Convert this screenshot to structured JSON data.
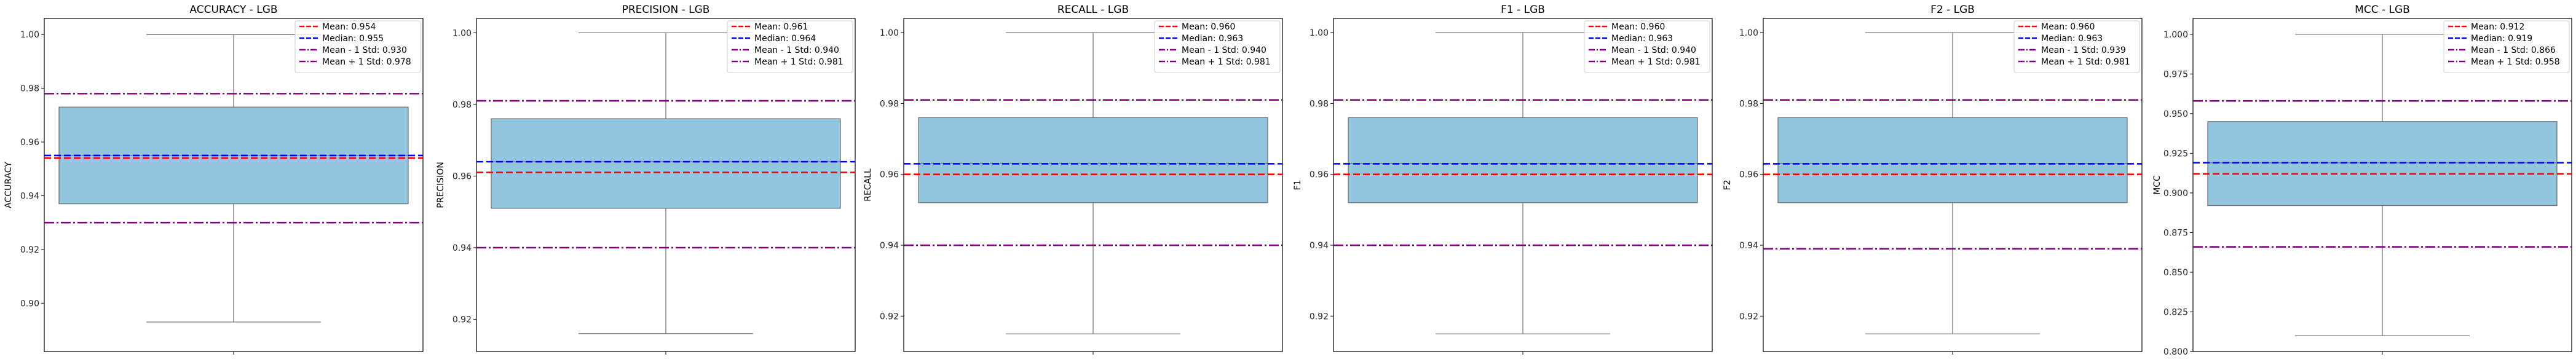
{
  "chart_data": [
    {
      "type": "box",
      "title": "ACCURACY - LGB",
      "ylabel": "ACCURACY",
      "xlabel": "",
      "ylim": [
        0.882,
        1.006
      ],
      "yticks": [
        0.9,
        0.92,
        0.94,
        0.96,
        0.98,
        1.0
      ],
      "ytick_labels": [
        "0.90",
        "0.92",
        "0.94",
        "0.96",
        "0.98",
        "1.00"
      ],
      "box": {
        "whisker_low": 0.893,
        "q1": 0.937,
        "median": 0.955,
        "q3": 0.973,
        "whisker_high": 1.0
      },
      "lines": [
        {
          "label": "Mean: 0.954",
          "value": 0.954,
          "color": "#ff0000",
          "style": "dashed"
        },
        {
          "label": "Median: 0.955",
          "value": 0.955,
          "color": "#0000ff",
          "style": "dashed"
        },
        {
          "label": "Mean - 1 Std: 0.930",
          "value": 0.93,
          "color": "#800080",
          "style": "dashdot"
        },
        {
          "label": "Mean + 1 Std: 0.978",
          "value": 0.978,
          "color": "#800080",
          "style": "dashdot"
        }
      ],
      "legend_position": "top-right"
    },
    {
      "type": "box",
      "title": "PRECISION - LGB",
      "ylabel": "PRECISION",
      "xlabel": "",
      "ylim": [
        0.911,
        1.004
      ],
      "yticks": [
        0.92,
        0.94,
        0.96,
        0.98,
        1.0
      ],
      "ytick_labels": [
        "0.92",
        "0.94",
        "0.96",
        "0.98",
        "1.00"
      ],
      "box": {
        "whisker_low": 0.916,
        "q1": 0.951,
        "median": 0.964,
        "q3": 0.976,
        "whisker_high": 1.0
      },
      "lines": [
        {
          "label": "Mean: 0.961",
          "value": 0.961,
          "color": "#ff0000",
          "style": "dashed"
        },
        {
          "label": "Median: 0.964",
          "value": 0.964,
          "color": "#0000ff",
          "style": "dashed"
        },
        {
          "label": "Mean - 1 Std: 0.940",
          "value": 0.94,
          "color": "#800080",
          "style": "dashdot"
        },
        {
          "label": "Mean + 1 Std: 0.981",
          "value": 0.981,
          "color": "#800080",
          "style": "dashdot"
        }
      ],
      "legend_position": "top-right"
    },
    {
      "type": "box",
      "title": "RECALL - LGB",
      "ylabel": "RECALL",
      "xlabel": "",
      "ylim": [
        0.91,
        1.004
      ],
      "yticks": [
        0.92,
        0.94,
        0.96,
        0.98,
        1.0
      ],
      "ytick_labels": [
        "0.92",
        "0.94",
        "0.96",
        "0.98",
        "1.00"
      ],
      "box": {
        "whisker_low": 0.915,
        "q1": 0.952,
        "median": 0.963,
        "q3": 0.976,
        "whisker_high": 1.0
      },
      "lines": [
        {
          "label": "Mean: 0.960",
          "value": 0.96,
          "color": "#ff0000",
          "style": "dashed"
        },
        {
          "label": "Median: 0.963",
          "value": 0.963,
          "color": "#0000ff",
          "style": "dashed"
        },
        {
          "label": "Mean - 1 Std: 0.940",
          "value": 0.94,
          "color": "#800080",
          "style": "dashdot"
        },
        {
          "label": "Mean + 1 Std: 0.981",
          "value": 0.981,
          "color": "#800080",
          "style": "dashdot"
        }
      ],
      "legend_position": "top-right"
    },
    {
      "type": "box",
      "title": "F1 - LGB",
      "ylabel": "F1",
      "xlabel": "",
      "ylim": [
        0.91,
        1.004
      ],
      "yticks": [
        0.92,
        0.94,
        0.96,
        0.98,
        1.0
      ],
      "ytick_labels": [
        "0.92",
        "0.94",
        "0.96",
        "0.98",
        "1.00"
      ],
      "box": {
        "whisker_low": 0.915,
        "q1": 0.952,
        "median": 0.963,
        "q3": 0.976,
        "whisker_high": 1.0
      },
      "lines": [
        {
          "label": "Mean: 0.960",
          "value": 0.96,
          "color": "#ff0000",
          "style": "dashed"
        },
        {
          "label": "Median: 0.963",
          "value": 0.963,
          "color": "#0000ff",
          "style": "dashed"
        },
        {
          "label": "Mean - 1 Std: 0.940",
          "value": 0.94,
          "color": "#800080",
          "style": "dashdot"
        },
        {
          "label": "Mean + 1 Std: 0.981",
          "value": 0.981,
          "color": "#800080",
          "style": "dashdot"
        }
      ],
      "legend_position": "top-right"
    },
    {
      "type": "box",
      "title": "F2 - LGB",
      "ylabel": "F2",
      "xlabel": "",
      "ylim": [
        0.91,
        1.004
      ],
      "yticks": [
        0.92,
        0.94,
        0.96,
        0.98,
        1.0
      ],
      "ytick_labels": [
        "0.92",
        "0.94",
        "0.96",
        "0.98",
        "1.00"
      ],
      "box": {
        "whisker_low": 0.915,
        "q1": 0.952,
        "median": 0.963,
        "q3": 0.976,
        "whisker_high": 1.0
      },
      "lines": [
        {
          "label": "Mean: 0.960",
          "value": 0.96,
          "color": "#ff0000",
          "style": "dashed"
        },
        {
          "label": "Median: 0.963",
          "value": 0.963,
          "color": "#0000ff",
          "style": "dashed"
        },
        {
          "label": "Mean - 1 Std: 0.939",
          "value": 0.939,
          "color": "#800080",
          "style": "dashdot"
        },
        {
          "label": "Mean + 1 Std: 0.981",
          "value": 0.981,
          "color": "#800080",
          "style": "dashdot"
        }
      ],
      "legend_position": "top-right"
    },
    {
      "type": "box",
      "title": "MCC - LGB",
      "ylabel": "MCC",
      "xlabel": "",
      "ylim": [
        0.8,
        1.01
      ],
      "yticks": [
        0.8,
        0.825,
        0.85,
        0.875,
        0.9,
        0.925,
        0.95,
        0.975,
        1.0
      ],
      "ytick_labels": [
        "0.800",
        "0.825",
        "0.850",
        "0.875",
        "0.900",
        "0.925",
        "0.950",
        "0.975",
        "1.000"
      ],
      "box": {
        "whisker_low": 0.81,
        "q1": 0.892,
        "median": 0.919,
        "q3": 0.945,
        "whisker_high": 1.0
      },
      "lines": [
        {
          "label": "Mean: 0.912",
          "value": 0.912,
          "color": "#ff0000",
          "style": "dashed"
        },
        {
          "label": "Median: 0.919",
          "value": 0.919,
          "color": "#0000ff",
          "style": "dashed"
        },
        {
          "label": "Mean - 1 Std: 0.866",
          "value": 0.866,
          "color": "#800080",
          "style": "dashdot"
        },
        {
          "label": "Mean + 1 Std: 0.958",
          "value": 0.958,
          "color": "#800080",
          "style": "dashdot"
        }
      ],
      "legend_position": "top-right"
    }
  ],
  "style": {
    "box_fill": "#92c5de",
    "box_stroke": "#6b6b6b",
    "axis_color": "#000000",
    "background": "#ffffff"
  }
}
